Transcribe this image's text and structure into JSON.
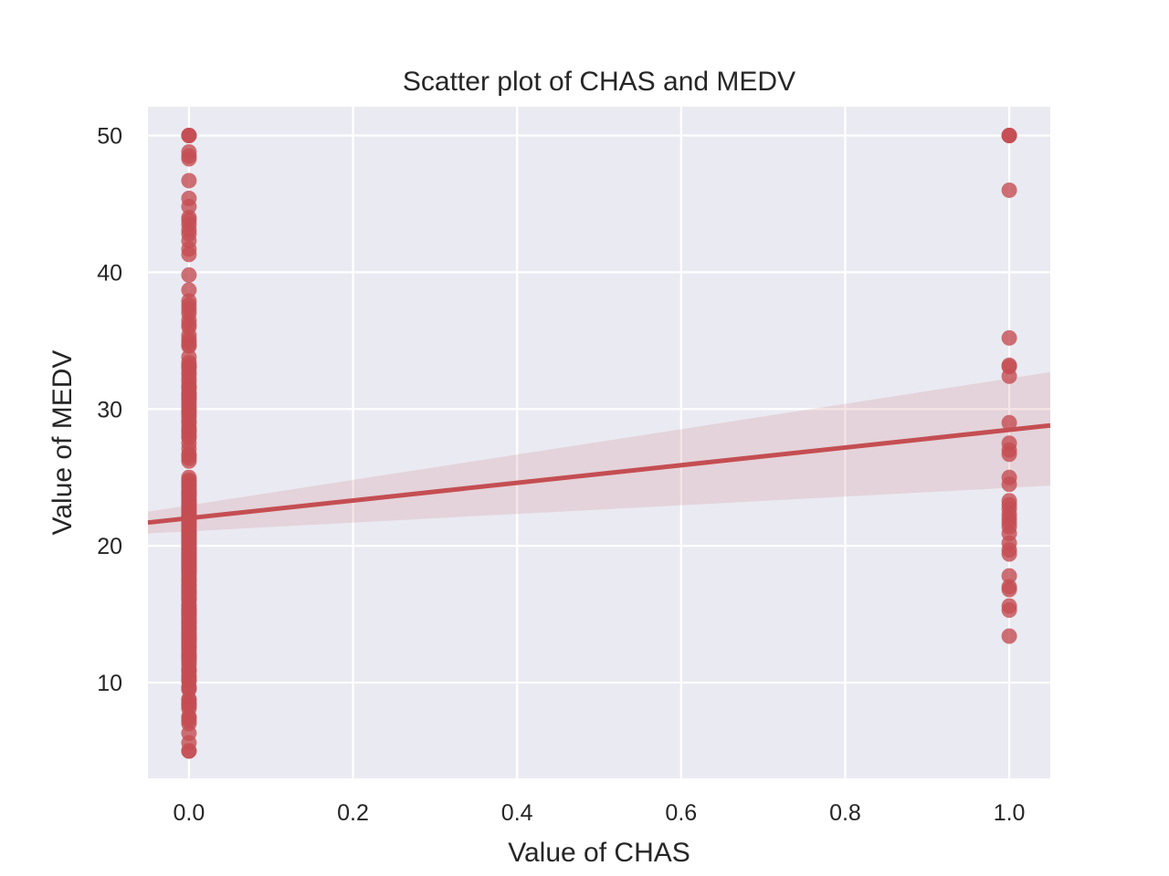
{
  "chart_data": {
    "type": "scatter",
    "title": "Scatter plot of CHAS and MEDV",
    "xlabel": "Value of CHAS",
    "ylabel": "Value of MEDV",
    "xlim": [
      -0.05,
      1.05
    ],
    "ylim": [
      3.0,
      52.1
    ],
    "xticks": [
      0.0,
      0.2,
      0.4,
      0.6,
      0.8,
      1.0
    ],
    "xtick_labels": [
      "0.0",
      "0.2",
      "0.4",
      "0.6",
      "0.8",
      "1.0"
    ],
    "yticks": [
      10,
      20,
      30,
      40,
      50
    ],
    "ytick_labels": [
      "10",
      "20",
      "30",
      "40",
      "50"
    ],
    "grid": true,
    "background": "#eaeaf2",
    "colors": {
      "points": "#c44e52",
      "line": "#c44e52",
      "band": "#c44e52"
    },
    "series": [
      {
        "x": 0,
        "y": [
          50,
          50,
          50,
          48.8,
          48.5,
          48.3,
          46.7,
          45.4,
          44.8,
          44.0,
          43.8,
          43.5,
          43.1,
          42.8,
          42.3,
          41.7,
          41.3,
          39.8,
          38.7,
          37.9,
          37.6,
          37.3,
          37.0,
          36.5,
          36.2,
          36.0,
          35.4,
          35.1,
          34.9,
          34.7,
          34.6,
          33.8,
          33.4,
          33.2,
          33.1,
          33.0,
          32.7,
          32.5,
          32.2,
          32.0,
          31.7,
          31.6,
          31.5,
          31.2,
          31.1,
          31.0,
          30.8,
          30.7,
          30.5,
          30.3,
          30.1,
          29.9,
          29.8,
          29.6,
          29.4,
          29.1,
          29.0,
          28.7,
          28.5,
          28.4,
          28.2,
          28.0,
          27.9,
          27.5,
          27.1,
          26.7,
          26.6,
          26.4,
          26.2,
          25.0,
          24.8,
          24.7,
          24.5,
          24.4,
          24.3,
          24.1,
          24.0,
          23.9,
          23.8,
          23.7,
          23.6,
          23.4,
          23.3,
          23.2,
          23.1,
          23.0,
          22.9,
          22.8,
          22.7,
          22.6,
          22.5,
          22.4,
          22.3,
          22.2,
          22.1,
          22.0,
          21.9,
          21.8,
          21.7,
          21.6,
          21.5,
          21.4,
          21.2,
          21.1,
          21.0,
          20.9,
          20.8,
          20.7,
          20.6,
          20.5,
          20.4,
          20.3,
          20.2,
          20.1,
          20.0,
          19.9,
          19.8,
          19.7,
          19.6,
          19.5,
          19.4,
          19.3,
          19.2,
          19.1,
          19.0,
          18.9,
          18.8,
          18.7,
          18.6,
          18.5,
          18.4,
          18.3,
          18.2,
          18.1,
          18.0,
          17.8,
          17.6,
          17.5,
          17.4,
          17.2,
          17.1,
          17.0,
          16.8,
          16.7,
          16.6,
          16.5,
          16.4,
          16.2,
          16.1,
          16.0,
          15.7,
          15.6,
          15.4,
          15.3,
          15.2,
          15.1,
          15.0,
          14.9,
          14.8,
          14.6,
          14.5,
          14.4,
          14.3,
          14.1,
          14.0,
          13.9,
          13.8,
          13.6,
          13.5,
          13.4,
          13.3,
          13.2,
          13.1,
          13.0,
          12.8,
          12.7,
          12.6,
          12.5,
          12.3,
          12.1,
          12.0,
          11.9,
          11.8,
          11.7,
          11.5,
          11.3,
          11.0,
          10.9,
          10.8,
          10.5,
          10.4,
          10.2,
          10.1,
          9.7,
          9.6,
          9.5,
          8.8,
          8.7,
          8.5,
          8.4,
          8.3,
          8.1,
          7.5,
          7.4,
          7.2,
          7.0,
          6.3,
          5.6,
          5.0,
          5.0
        ]
      },
      {
        "x": 1,
        "y": [
          50,
          50,
          50,
          46.0,
          35.2,
          33.2,
          33.1,
          32.4,
          29.0,
          27.5,
          27.0,
          26.7,
          25.0,
          24.5,
          23.3,
          23.0,
          22.7,
          22.3,
          22.0,
          21.7,
          21.4,
          20.9,
          20.2,
          19.7,
          19.4,
          17.8,
          17.0,
          16.8,
          15.6,
          15.3,
          13.4
        ]
      }
    ],
    "regression": {
      "x_range": [
        -0.05,
        1.05
      ],
      "y_at_range": [
        21.7,
        28.8
      ],
      "ci_lower": [
        20.9,
        24.4
      ],
      "ci_upper": [
        22.5,
        32.7
      ]
    }
  }
}
